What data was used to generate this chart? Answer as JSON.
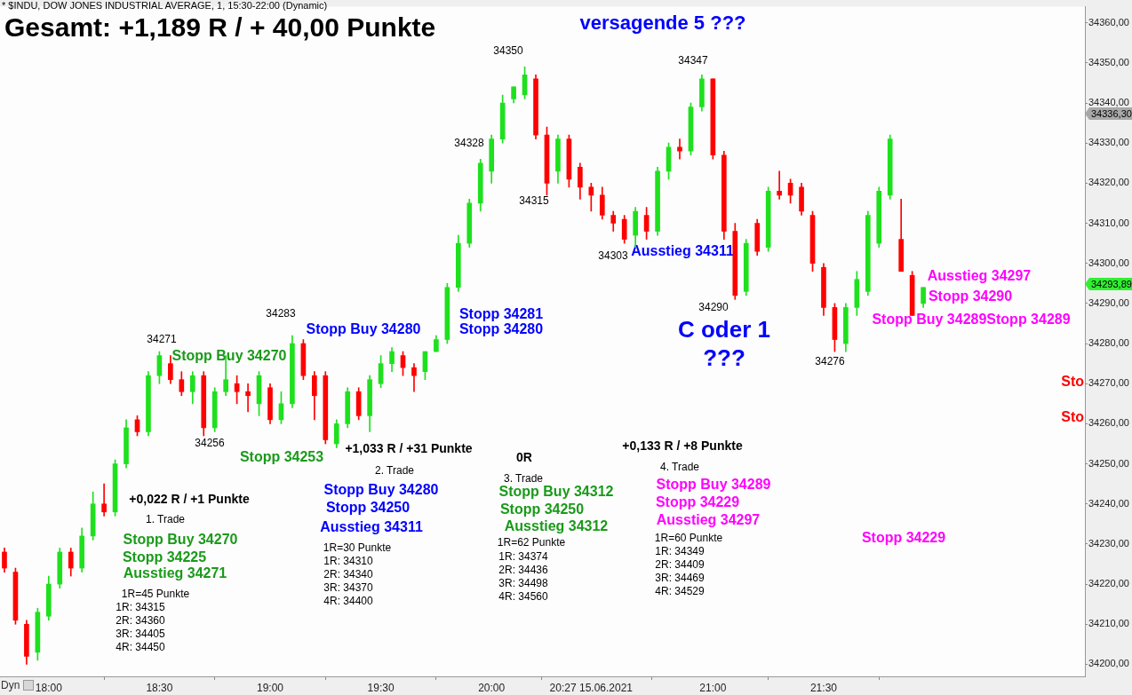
{
  "chart_data": {
    "type": "candlestick",
    "title": "Gesamt: +1,189 R / + 40,00 Punkte",
    "subtitle": "* $INDU, DOW JONES INDUSTRIAL AVERAGE, 1, 15:30-22:00 (Dynamic)",
    "x": [
      17.8,
      17.85,
      17.9,
      17.95,
      18,
      18.05,
      18.1,
      18.15,
      18.2,
      18.25,
      18.3,
      18.35,
      18.4,
      18.45,
      18.5,
      18.55,
      18.6,
      18.65,
      18.7,
      18.75,
      18.8,
      18.85,
      18.9,
      18.95,
      19,
      19.05,
      19.1,
      19.15,
      19.2,
      19.25,
      19.3,
      19.35,
      19.4,
      19.45,
      19.5,
      19.55,
      19.6,
      19.65,
      19.7,
      19.75,
      19.8,
      19.85,
      19.9,
      19.95,
      20,
      20.05,
      20.1,
      20.15,
      20.2,
      20.25,
      20.3,
      20.35,
      20.4,
      20.45,
      20.5,
      20.55,
      20.6,
      20.65,
      20.7,
      20.75,
      20.8,
      20.85,
      20.9,
      20.95,
      21,
      21.05,
      21.1,
      21.15,
      21.2,
      21.25,
      21.3,
      21.35,
      21.4,
      21.45,
      21.5,
      21.55,
      21.6,
      21.65,
      21.7,
      21.75,
      21.8,
      21.85,
      21.9,
      21.95
    ],
    "ohlc": [
      [
        34228,
        34229,
        34223,
        34224
      ],
      [
        34223,
        34224,
        34210,
        34211
      ],
      [
        34210,
        34211,
        34200,
        34202
      ],
      [
        34203,
        34214,
        34201,
        34213
      ],
      [
        34212,
        34222,
        34211,
        34220
      ],
      [
        34220,
        34229,
        34219,
        34228
      ],
      [
        34228,
        34229,
        34222,
        34224
      ],
      [
        34224,
        34234,
        34223,
        34232
      ],
      [
        34232,
        34243,
        34231,
        34240
      ],
      [
        34240,
        34245,
        34237,
        34238
      ],
      [
        34238,
        34251,
        34237,
        34250
      ],
      [
        34250,
        34261,
        34249,
        34259
      ],
      [
        34261,
        34262,
        34257,
        34258
      ],
      [
        34258,
        34273,
        34257,
        34272
      ],
      [
        34272,
        34278,
        34270,
        34277
      ],
      [
        34275,
        34277,
        34270,
        34271
      ],
      [
        34271,
        34273,
        34267,
        34268
      ],
      [
        34268,
        34273,
        34265,
        34272
      ],
      [
        34272,
        34273,
        34257,
        34259
      ],
      [
        34259,
        34269,
        34258,
        34268
      ],
      [
        34268,
        34277,
        34267,
        34271
      ],
      [
        34270,
        34272,
        34265,
        34268
      ],
      [
        34268,
        34270,
        34263,
        34267
      ],
      [
        34265,
        34273,
        34262,
        34272
      ],
      [
        34269,
        34270,
        34260,
        34261
      ],
      [
        34261,
        34268,
        34260,
        34265
      ],
      [
        34265,
        34282,
        34264,
        34280
      ],
      [
        34280,
        34281,
        34271,
        34272
      ],
      [
        34272,
        34273,
        34261,
        34267
      ],
      [
        34272,
        34273,
        34255,
        34256
      ],
      [
        34255,
        34261,
        34254,
        34260
      ],
      [
        34260,
        34269,
        34259,
        34268
      ],
      [
        34268,
        34269,
        34261,
        34262
      ],
      [
        34262,
        34272,
        34258,
        34271
      ],
      [
        34270,
        34277,
        34269,
        34275
      ],
      [
        34275,
        34279,
        34273,
        34278
      ],
      [
        34277,
        34278,
        34272,
        34274
      ],
      [
        34274,
        34275,
        34268,
        34272
      ],
      [
        34273,
        34278,
        34271,
        34278
      ],
      [
        34278,
        34282,
        34278,
        34281
      ],
      [
        34281,
        34295,
        34280,
        34294
      ],
      [
        34294,
        34307,
        34293,
        34305
      ],
      [
        34305,
        34316,
        34304,
        34315
      ],
      [
        34315,
        34326,
        34313,
        34325
      ],
      [
        34323,
        34332,
        34320,
        34331
      ],
      [
        34331,
        34342,
        34330,
        34340
      ],
      [
        34341,
        34344,
        34340,
        34344
      ],
      [
        34342,
        34349,
        34341,
        34347
      ],
      [
        34346,
        34347,
        34331,
        34332
      ],
      [
        34332,
        34334,
        34317,
        34320
      ],
      [
        34323,
        34332,
        34320,
        34331
      ],
      [
        34331,
        34332,
        34319,
        34321
      ],
      [
        34324,
        34325,
        34316,
        34319
      ],
      [
        34319,
        34320,
        34313,
        34317
      ],
      [
        34317,
        34319,
        34311,
        34312
      ],
      [
        34312,
        34313,
        34308,
        34310
      ],
      [
        34311,
        34312,
        34305,
        34306
      ],
      [
        34307,
        34314,
        34304,
        34313
      ],
      [
        34312,
        34314,
        34306,
        34308
      ],
      [
        34308,
        34324,
        34307,
        34323
      ],
      [
        34323,
        34330,
        34321,
        34329
      ],
      [
        34329,
        34331,
        34326,
        34328
      ],
      [
        34328,
        34340,
        34327,
        34339
      ],
      [
        34339,
        34347,
        34338,
        34346
      ],
      [
        34346,
        34346,
        34326,
        34327
      ],
      [
        34327,
        34328,
        34306,
        34308
      ],
      [
        34308,
        34310,
        34291,
        34292
      ],
      [
        34293,
        34306,
        34292,
        34305
      ],
      [
        34310,
        34311,
        34302,
        34303
      ],
      [
        34304,
        34319,
        34303,
        34318
      ],
      [
        34318,
        34323,
        34316,
        34317
      ],
      [
        34320,
        34321,
        34315,
        34317
      ],
      [
        34319,
        34320,
        34312,
        34313
      ],
      [
        34312,
        34313,
        34298,
        34300
      ],
      [
        34299,
        34300,
        34287,
        34289
      ],
      [
        34289,
        34290,
        34278,
        34281
      ],
      [
        34280,
        34290,
        34278,
        34289
      ],
      [
        34289,
        34298,
        34287,
        34296
      ],
      [
        34293,
        34313,
        34292,
        34312
      ],
      [
        34305,
        34319,
        34304,
        34318
      ],
      [
        34317,
        34332,
        34316,
        34331
      ],
      [
        34306,
        34316,
        34298,
        34298
      ],
      [
        34297,
        34298,
        34287,
        34287
      ],
      [
        34290,
        34294,
        34289,
        34294
      ]
    ],
    "colors": [
      "#ff0000",
      "#ff0000",
      "#ff0000",
      "#1ee01e",
      "#1ee01e",
      "#1ee01e",
      "#ff0000",
      "#1ee01e",
      "#1ee01e",
      "#ff0000",
      "#1ee01e",
      "#1ee01e",
      "#ff0000",
      "#1ee01e",
      "#1ee01e",
      "#ff0000",
      "#ff0000",
      "#1ee01e",
      "#ff0000",
      "#1ee01e",
      "#1ee01e",
      "#ff0000",
      "#ff0000",
      "#1ee01e",
      "#ff0000",
      "#1ee01e",
      "#1ee01e",
      "#ff0000",
      "#ff0000",
      "#ff0000",
      "#1ee01e",
      "#1ee01e",
      "#ff0000",
      "#1ee01e",
      "#1ee01e",
      "#1ee01e",
      "#ff0000",
      "#ff0000",
      "#1ee01e",
      "#1ee01e",
      "#1ee01e",
      "#1ee01e",
      "#1ee01e",
      "#1ee01e",
      "#1ee01e",
      "#1ee01e",
      "#1ee01e",
      "#1ee01e",
      "#ff0000",
      "#ff0000",
      "#1ee01e",
      "#ff0000",
      "#ff0000",
      "#ff0000",
      "#ff0000",
      "#ff0000",
      "#ff0000",
      "#1ee01e",
      "#ff0000",
      "#1ee01e",
      "#1ee01e",
      "#ff0000",
      "#1ee01e",
      "#1ee01e",
      "#ff0000",
      "#ff0000",
      "#ff0000",
      "#1ee01e",
      "#ff0000",
      "#1ee01e",
      "#ff0000",
      "#ff0000",
      "#ff0000",
      "#ff0000",
      "#ff0000",
      "#ff0000",
      "#1ee01e",
      "#1ee01e",
      "#1ee01e",
      "#1ee01e",
      "#1ee01e",
      "#ff0000",
      "#ff0000",
      "#1ee01e"
    ],
    "xlim": [
      17.78,
      22.68
    ],
    "xticks": [
      {
        "value": 18,
        "label": "18:00"
      },
      {
        "value": 18.5,
        "label": "18:30"
      },
      {
        "value": 19,
        "label": "19:00"
      },
      {
        "value": 19.5,
        "label": "19:30"
      },
      {
        "value": 20,
        "label": "20:00"
      },
      {
        "value": 20.45,
        "label": "20:27 15.06.2021"
      },
      {
        "value": 21,
        "label": "21:00"
      },
      {
        "value": 21.5,
        "label": "21:30"
      }
    ],
    "ylim": [
      34197,
      34364
    ],
    "yticks": [
      {
        "value": 34200,
        "label": "34200,00"
      },
      {
        "value": 34210,
        "label": "34210,00"
      },
      {
        "value": 34220,
        "label": "34220,00"
      },
      {
        "value": 34230,
        "label": "34230,00"
      },
      {
        "value": 34240,
        "label": "34240,00"
      },
      {
        "value": 34250,
        "label": "34250,00"
      },
      {
        "value": 34260,
        "label": "34260,00"
      },
      {
        "value": 34270,
        "label": "34270,00"
      },
      {
        "value": 34280,
        "label": "34280,00"
      },
      {
        "value": 34290,
        "label": "34290,00"
      },
      {
        "value": 34300,
        "label": "34300,00"
      },
      {
        "value": 34310,
        "label": "34310,00"
      },
      {
        "value": 34320,
        "label": "34320,00"
      },
      {
        "value": 34330,
        "label": "34330,00"
      },
      {
        "value": 34340,
        "label": "34340,00"
      },
      {
        "value": 34350,
        "label": "34350,00"
      },
      {
        "value": 34360,
        "label": "34360,00"
      }
    ],
    "legend": false,
    "annotations": [
      "34271",
      "34256",
      "34283",
      "34350",
      "34328",
      "34315",
      "34347",
      "34303",
      "34290",
      "34276",
      "Stopp Buy 34270",
      "Stopp 34253",
      "Stopp Buy 34280",
      "Stopp 34281",
      "Stopp 34280",
      "Ausstieg 34311",
      "C oder 1",
      "???",
      "versagende 5 ???",
      "Ausstieg 34297",
      "Stopp 34290",
      "Stopp Buy 34289Stopp 34289",
      "Sto",
      "Sto",
      "+0,022 R / +1 Punkte",
      "1. Trade",
      "Stopp Buy 34270",
      "Stopp 34225",
      "Ausstieg 34271",
      "1R=45 Punkte",
      "1R: 34315",
      "2R: 34360",
      "3R: 34405",
      "4R: 34450",
      "+1,033 R / +31 Punkte",
      "2. Trade",
      "Stopp Buy 34280",
      "Stopp 34250",
      "Ausstieg 34311",
      "1R=30 Punkte",
      "1R: 34310",
      "2R: 34340",
      "3R: 34370",
      "4R: 34400",
      "0R",
      "3. Trade",
      "Stopp Buy 34312",
      "Stopp 34250",
      "Ausstieg 34312",
      "1R=62 Punkte",
      "1R: 34374",
      "2R: 34436",
      "3R: 34498",
      "4R: 34560",
      "+0,133 R / +8 Punkte",
      "4. Trade",
      "Stopp Buy 34289",
      "Stopp 34229",
      "Ausstieg 34297",
      "1R=60 Punkte",
      "1R: 34349",
      "2R: 34409",
      "3R: 34469",
      "4R: 34529",
      "Stopp 34229",
      "34336,30",
      "34293,89",
      "Dyn"
    ]
  }
}
